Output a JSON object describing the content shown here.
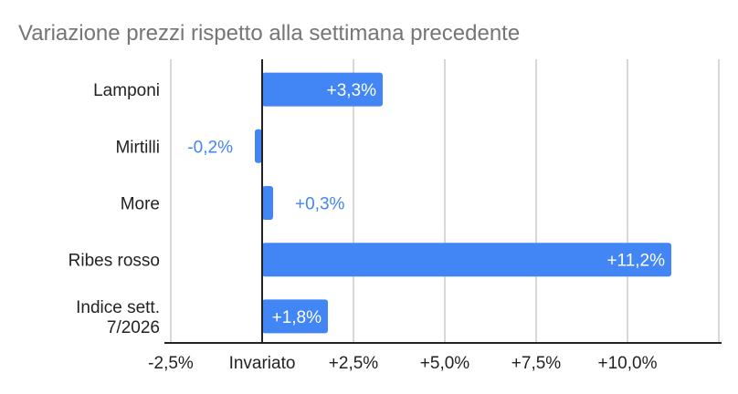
{
  "chart_data": {
    "type": "bar",
    "orientation": "horizontal",
    "title": "Variazione prezzi rispetto alla settimana precedente",
    "categories": [
      "Lamponi",
      "Mirtilli",
      "More",
      "Ribes rosso",
      "Indice sett. 7/2026"
    ],
    "category_lines": [
      [
        "Lamponi"
      ],
      [
        "Mirtilli"
      ],
      [
        "More"
      ],
      [
        "Ribes rosso"
      ],
      [
        "Indice sett.",
        "7/2026"
      ]
    ],
    "values": [
      3.3,
      -0.2,
      0.3,
      11.2,
      1.8
    ],
    "data_labels": [
      "+3,3%",
      "-0,2%",
      "+0,3%",
      "+11,2%",
      "+1,8%"
    ],
    "xlim": [
      -2.5,
      12.5
    ],
    "ticks": [
      -2.5,
      0,
      2.5,
      5,
      7.5,
      10,
      12.5
    ],
    "tick_labels": [
      "-2,5%",
      "Invariato",
      "+2,5%",
      "+5,0%",
      "+7,5%",
      "+10,0%",
      ""
    ],
    "xlabel": "",
    "ylabel": "",
    "grid": true,
    "legend": "none",
    "colors": {
      "bar": "#4285f4",
      "grid": "#cccccc",
      "axis": "#222222",
      "title": "#757575"
    }
  }
}
